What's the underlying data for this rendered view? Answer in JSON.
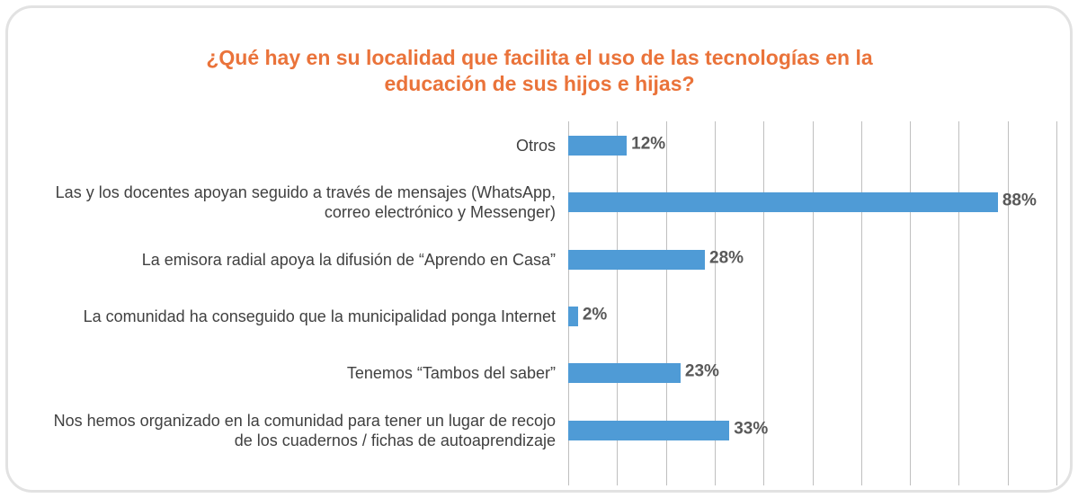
{
  "chart_data": {
    "type": "bar",
    "orientation": "horizontal",
    "title": "¿Qué hay en su localidad que facilita el uso de las tecnologías en la educación de sus hijos e hijas?",
    "categories": [
      "Otros",
      "Las y los docentes apoyan seguido a través de mensajes (WhatsApp, correo electrónico y Messenger)",
      "La emisora radial apoya la difusión de “Aprendo en Casa”",
      "La comunidad ha conseguido que la municipalidad ponga Internet",
      "Tenemos “Tambos del saber”",
      "Nos hemos organizado en la comunidad para tener un lugar de recojo de los cuadernos / fichas de autoaprendizaje"
    ],
    "values": [
      12,
      88,
      28,
      2,
      23,
      33
    ],
    "value_labels": [
      "12%",
      "88%",
      "28%",
      "2%",
      "23%",
      "33%"
    ],
    "color": "#4f9bd6",
    "xlim": [
      0,
      100
    ],
    "xticks": [
      0,
      10,
      20,
      30,
      40,
      50,
      60,
      70,
      80,
      90,
      100
    ],
    "grid": true
  }
}
